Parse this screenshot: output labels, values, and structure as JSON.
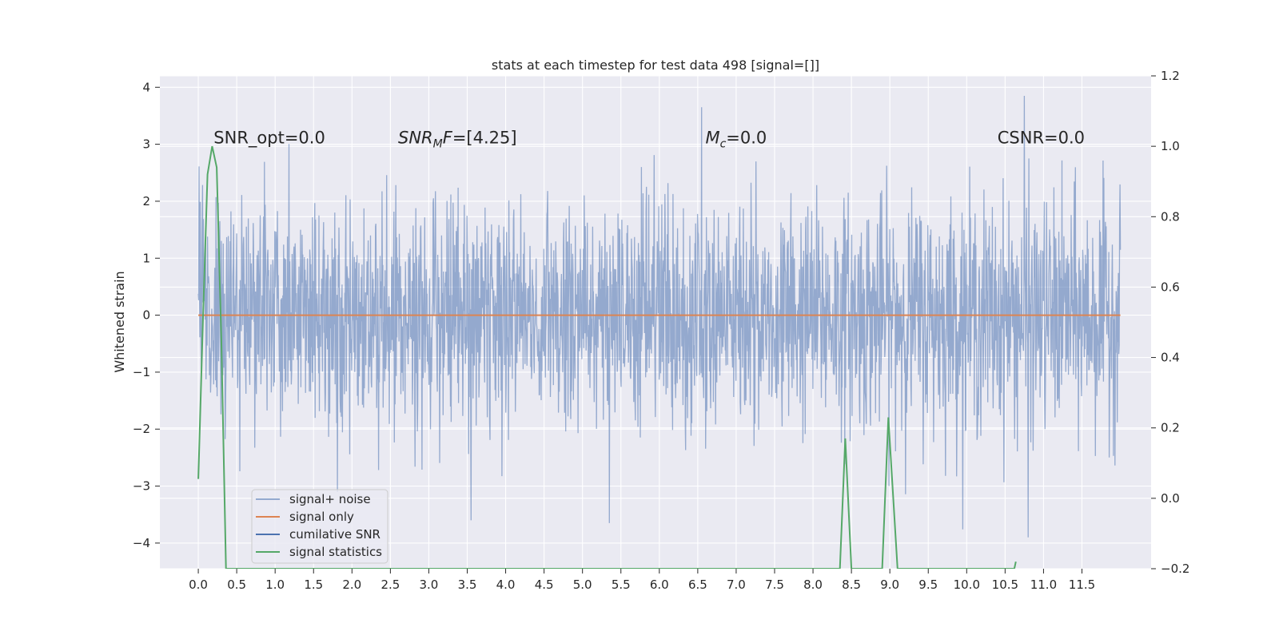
{
  "chart_data": {
    "type": "line",
    "title": "stats at each timestep for test data 498 [signal=[]]",
    "ylabel": "Whitened strain",
    "xlabel": "",
    "xlim": [
      -0.5,
      12.4
    ],
    "ylim": [
      -4.45,
      4.2
    ],
    "y2lim": [
      -0.2,
      1.2
    ],
    "grid": true,
    "legend_position": "lower-left",
    "x_ticks": [
      "0.0",
      "0.5",
      "1.0",
      "1.5",
      "2.0",
      "2.5",
      "3.0",
      "3.5",
      "4.0",
      "4.5",
      "5.0",
      "5.5",
      "6.0",
      "6.5",
      "7.0",
      "7.5",
      "8.0",
      "8.5",
      "9.0",
      "9.5",
      "10.0",
      "10.5",
      "11.0",
      "11.5"
    ],
    "y_ticks": [
      4,
      3,
      2,
      1,
      0,
      -1,
      -2,
      -3,
      -4
    ],
    "y_tick_labels": [
      "4",
      "3",
      "2",
      "1",
      "0",
      "−1",
      "−2",
      "−3",
      "−4"
    ],
    "y2_ticks": [
      1.2,
      1.0,
      0.8,
      0.6,
      0.4,
      0.2,
      0.0,
      -0.2
    ],
    "y2_tick_labels": [
      "1.2",
      "1.0",
      "0.8",
      "0.6",
      "0.4",
      "0.2",
      "0.0",
      "−0.2"
    ],
    "annotations": [
      {
        "x": 0.2,
        "y": 3.0,
        "parts": [
          {
            "t": "SNR_opt=0.0"
          }
        ]
      },
      {
        "x": 2.6,
        "y": 3.0,
        "parts": [
          {
            "t": "SNR",
            "i": true
          },
          {
            "t": "M",
            "i": true,
            "sub": true
          },
          {
            "t": "F",
            "i": true
          },
          {
            "t": "=[4.25]"
          }
        ]
      },
      {
        "x": 6.6,
        "y": 3.0,
        "parts": [
          {
            "t": "M",
            "i": true
          },
          {
            "t": "c",
            "i": true,
            "sub": true
          },
          {
            "t": "=0.0"
          }
        ]
      },
      {
        "x": 10.4,
        "y": 3.0,
        "parts": [
          {
            "t": "CSNR=0.0"
          }
        ]
      }
    ],
    "series": [
      {
        "name": "signal+ noise",
        "color": "#4c72b0",
        "alpha": 0.55,
        "axis": "left",
        "x_range": [
          0.0,
          12.0
        ],
        "samples": 2400,
        "noise_std": 1.0,
        "approx_range": [
          -3.9,
          3.9
        ],
        "notable_peaks": [
          {
            "x": 6.55,
            "y": 3.65
          },
          {
            "x": 10.75,
            "y": 3.85
          },
          {
            "x": 3.55,
            "y": -3.6
          },
          {
            "x": 5.35,
            "y": -3.65
          },
          {
            "x": 10.8,
            "y": -3.9
          }
        ]
      },
      {
        "name": "signal only",
        "color": "#dd8452",
        "axis": "left",
        "x": [
          0.0,
          12.0
        ],
        "y": [
          0.0,
          0.0
        ]
      },
      {
        "name": "cumilative SNR",
        "color": "#4c72b0",
        "axis": "right",
        "x": [],
        "y": []
      },
      {
        "name": "signal statistics",
        "color": "#55a868",
        "axis": "right",
        "x": [
          0.0,
          0.06,
          0.12,
          0.18,
          0.24,
          0.3,
          0.36,
          8.35,
          8.42,
          8.5,
          8.9,
          8.98,
          9.1,
          10.62,
          10.64
        ],
        "y": [
          0.055,
          0.5,
          0.92,
          1.0,
          0.94,
          0.45,
          -0.2,
          -0.2,
          0.17,
          -0.2,
          -0.2,
          0.23,
          -0.2,
          -0.2,
          -0.18
        ]
      }
    ]
  }
}
